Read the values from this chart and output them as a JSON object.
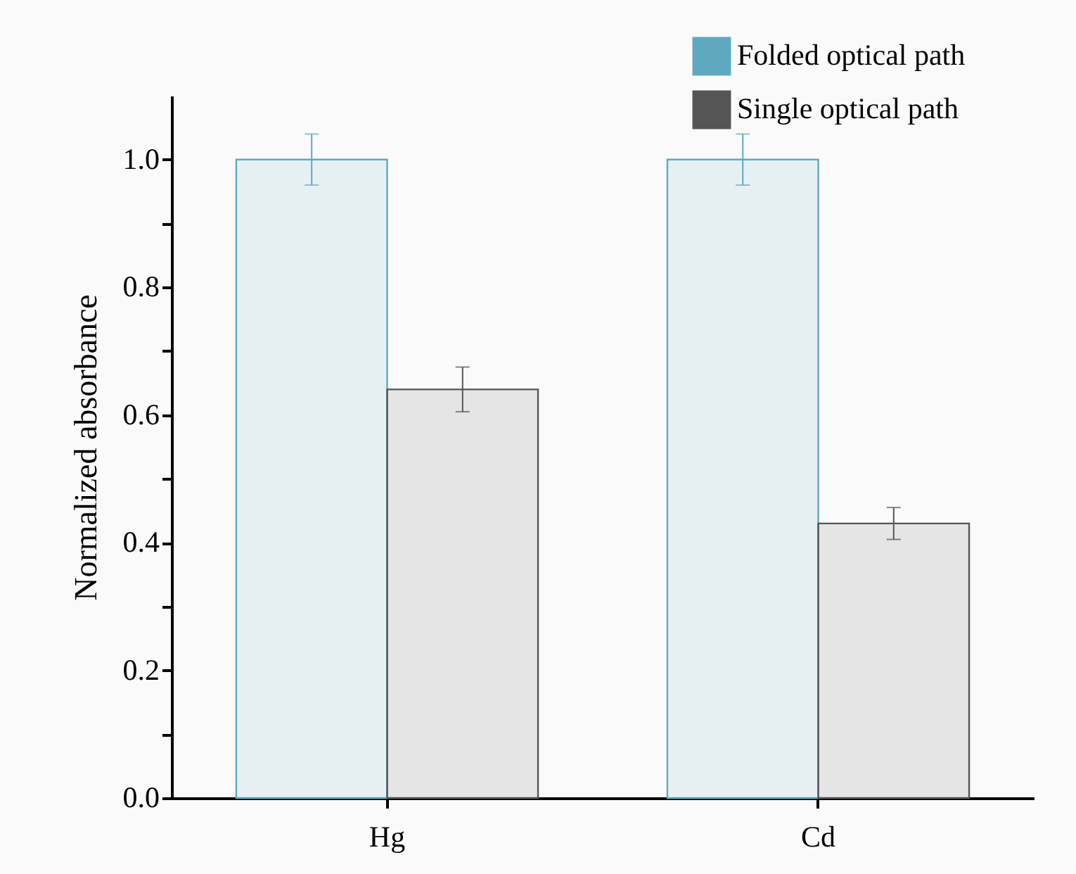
{
  "chart_data": {
    "type": "bar",
    "ylabel": "Normalized absorbance",
    "categories": [
      "Hg",
      "Cd"
    ],
    "series": [
      {
        "name": "Folded optical path",
        "color": "#5ea9c0",
        "values": [
          1.0,
          1.0
        ],
        "errors": [
          0.04,
          0.04
        ]
      },
      {
        "name": "Single optical path",
        "color": "#555555",
        "values": [
          0.64,
          0.43
        ],
        "errors": [
          0.035,
          0.025
        ]
      }
    ],
    "ylim": [
      0,
      1.1
    ],
    "yticks": [
      {
        "value": 0,
        "label": "0.0"
      },
      {
        "value": 0.1,
        "label": null
      },
      {
        "value": 0.2,
        "label": "0.2"
      },
      {
        "value": 0.3,
        "label": null
      },
      {
        "value": 0.4,
        "label": "0.4"
      },
      {
        "value": 0.5,
        "label": null
      },
      {
        "value": 0.6,
        "label": "0.6"
      },
      {
        "value": 0.7,
        "label": null
      },
      {
        "value": 0.8,
        "label": "0.8"
      },
      {
        "value": 0.9,
        "label": null
      },
      {
        "value": 1.0,
        "label": "1.0"
      }
    ],
    "legend": "top right"
  }
}
